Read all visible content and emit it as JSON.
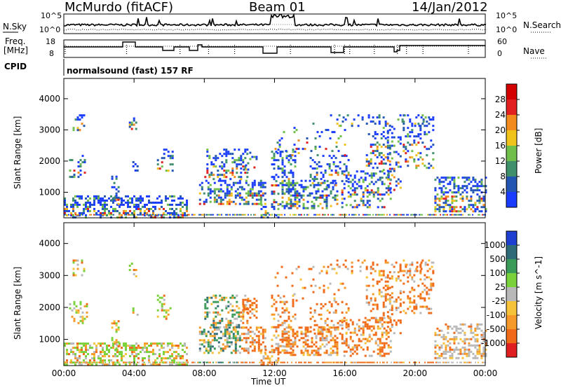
{
  "header": {
    "station": "McMurdo (fitACF)",
    "beam": "Beam 01",
    "date": "14/Jan/2012"
  },
  "panels": {
    "nsky": {
      "label": "N.Sky",
      "tick_top": "10^5",
      "tick_bottom": "10^0"
    },
    "nsearch": {
      "label": "N.Search",
      "tick_top": "10^5",
      "tick_bottom": "10^0"
    },
    "freq": {
      "label_line1": "Freq.",
      "label_line2": "[MHz]",
      "tick_top": "18",
      "tick_bottom": "8"
    },
    "nave": {
      "label": "Nave",
      "tick_top": "60",
      "tick_bottom": "0"
    },
    "cpid": {
      "label": "CPID",
      "text": "normalsound (fast) 157 RF"
    }
  },
  "colors": {
    "axes": "#000000",
    "background": "#ffffff"
  },
  "chart_data": [
    {
      "type": "heatmap",
      "title": "",
      "xlabel": "Time UT",
      "ylabel": "Slant Range [km]",
      "xlim": [
        "00:00",
        "24:00"
      ],
      "ylim": [
        180,
        4650
      ],
      "x_ticks": [
        "00:00",
        "04:00",
        "08:00",
        "12:00",
        "16:00",
        "20:00",
        "00:00"
      ],
      "y_ticks": [
        1000,
        2000,
        3000,
        4000
      ],
      "colorbar_label": "Power [dB]",
      "colorbar_ticks": [
        "4",
        "8",
        "12",
        "16",
        "20",
        "24",
        "28"
      ],
      "colorbar_colors": [
        "#1a3cff",
        "#2356b2",
        "#3f8f6b",
        "#6fbf4a",
        "#f0c21c",
        "#f28a1e",
        "#e32020",
        "#d40000"
      ],
      "grid": false
    },
    {
      "type": "heatmap",
      "title": "",
      "xlabel": "Time UT",
      "ylabel": "Slant Range [km]",
      "xlim": [
        "00:00",
        "24:00"
      ],
      "ylim": [
        180,
        4650
      ],
      "x_ticks": [
        "00:00",
        "04:00",
        "08:00",
        "12:00",
        "16:00",
        "20:00",
        "00:00"
      ],
      "y_ticks": [
        1000,
        2000,
        3000,
        4000
      ],
      "colorbar_label": "Velocity [m s^-1]",
      "colorbar_ticks": [
        "1000",
        "500",
        "100",
        "25",
        "-25",
        "-100",
        "-500",
        "-1000"
      ],
      "colorbar_colors": [
        "#1f3fd0",
        "#2f6a78",
        "#3a9a58",
        "#7ad23a",
        "#b8b8b8",
        "#f5c23a",
        "#f59a2a",
        "#f06a18",
        "#e02020"
      ],
      "grid": false
    }
  ]
}
